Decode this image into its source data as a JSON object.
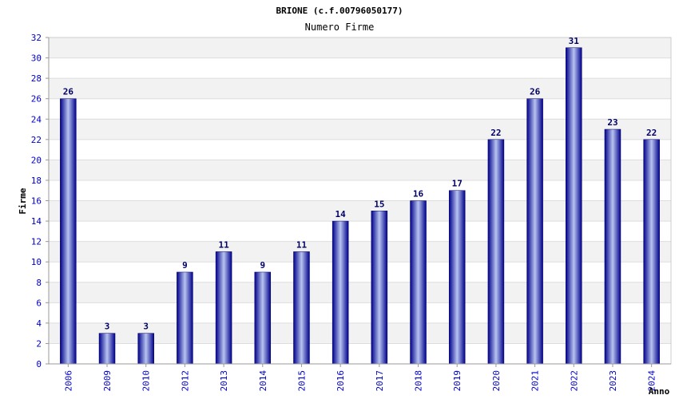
{
  "chart_data": {
    "type": "bar",
    "title": "BRIONE (c.f.00796050177)",
    "subtitle": "Numero Firme",
    "ylabel": "Firme",
    "xlabel": "Anno",
    "categories": [
      "2006",
      "2009",
      "2010",
      "2012",
      "2013",
      "2014",
      "2015",
      "2016",
      "2017",
      "2018",
      "2019",
      "2020",
      "2021",
      "2022",
      "2023",
      "2024"
    ],
    "values": [
      26,
      3,
      3,
      9,
      11,
      9,
      11,
      14,
      15,
      16,
      17,
      22,
      26,
      31,
      23,
      22
    ],
    "ylim": [
      0,
      32
    ],
    "yticks": [
      0,
      2,
      4,
      6,
      8,
      10,
      12,
      14,
      16,
      18,
      20,
      22,
      24,
      26,
      28,
      30,
      32
    ],
    "grid": true,
    "legend": "none",
    "colors": {
      "bar_dark": "#00008b",
      "bar_light": "#b8c4f0",
      "band_alt": "#f2f2f2",
      "tick_text": "#0000cc",
      "label_text": "#000066"
    }
  }
}
